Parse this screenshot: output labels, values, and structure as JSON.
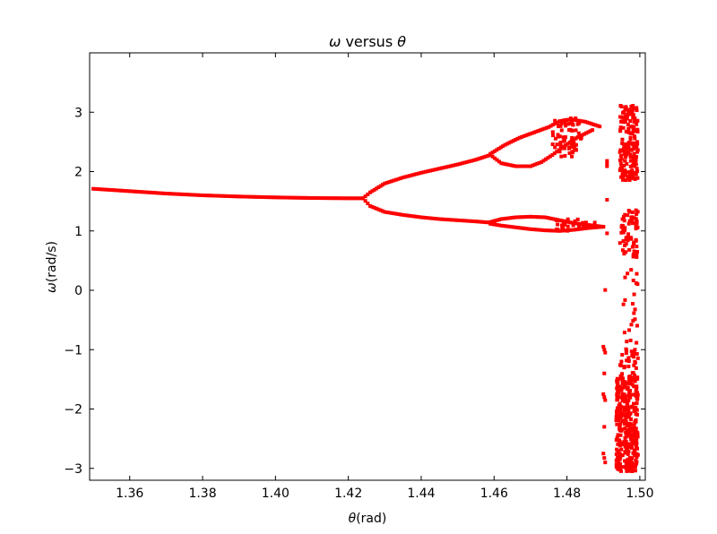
{
  "chart_data": {
    "type": "scatter",
    "title": {
      "sym1": "ω",
      "text": " versus ",
      "sym2": "θ"
    },
    "xlabel": {
      "sym": "θ",
      "unit": "(rad)"
    },
    "ylabel": {
      "sym": "ω",
      "unit": "(rad/s)"
    },
    "xlim": [
      1.349,
      1.5015
    ],
    "ylim": [
      -3.2,
      4.0
    ],
    "xticks": [
      1.36,
      1.38,
      1.4,
      1.42,
      1.44,
      1.46,
      1.48,
      1.5
    ],
    "xtick_labels": [
      "1.36",
      "1.38",
      "1.40",
      "1.42",
      "1.44",
      "1.46",
      "1.48",
      "1.50"
    ],
    "yticks": [
      -3,
      -2,
      -1,
      0,
      1,
      2,
      3
    ],
    "ytick_labels": [
      "−3",
      "−2",
      "−1",
      "0",
      "1",
      "2",
      "3"
    ],
    "grid": false,
    "marker_color": "#ff0000",
    "series": [
      {
        "regions": [
          {
            "desc": "single-branch",
            "points": [
              [
                1.35,
                1.71
              ],
              [
                1.36,
                1.67
              ],
              [
                1.37,
                1.63
              ],
              [
                1.38,
                1.6
              ],
              [
                1.39,
                1.58
              ],
              [
                1.4,
                1.565
              ],
              [
                1.41,
                1.555
              ],
              [
                1.42,
                1.55
              ],
              [
                1.424,
                1.55
              ]
            ]
          },
          {
            "desc": "upper-branch-period2",
            "points": [
              [
                1.424,
                1.55
              ],
              [
                1.426,
                1.65
              ],
              [
                1.43,
                1.8
              ],
              [
                1.435,
                1.9
              ],
              [
                1.44,
                1.98
              ],
              [
                1.445,
                2.05
              ],
              [
                1.45,
                2.12
              ],
              [
                1.455,
                2.2
              ],
              [
                1.459,
                2.28
              ]
            ]
          },
          {
            "desc": "lower-branch-period2",
            "points": [
              [
                1.424,
                1.55
              ],
              [
                1.426,
                1.42
              ],
              [
                1.43,
                1.32
              ],
              [
                1.435,
                1.27
              ],
              [
                1.44,
                1.23
              ],
              [
                1.445,
                1.2
              ],
              [
                1.45,
                1.18
              ],
              [
                1.455,
                1.16
              ],
              [
                1.459,
                1.14
              ]
            ]
          },
          {
            "desc": "upper-loop-top",
            "points": [
              [
                1.459,
                2.3
              ],
              [
                1.463,
                2.45
              ],
              [
                1.467,
                2.57
              ],
              [
                1.471,
                2.66
              ],
              [
                1.475,
                2.75
              ],
              [
                1.478,
                2.85
              ],
              [
                1.481,
                2.88
              ],
              [
                1.485,
                2.84
              ],
              [
                1.489,
                2.76
              ]
            ]
          },
          {
            "desc": "upper-loop-bottom",
            "points": [
              [
                1.459,
                2.28
              ],
              [
                1.462,
                2.14
              ],
              [
                1.466,
                2.09
              ],
              [
                1.47,
                2.09
              ],
              [
                1.473,
                2.16
              ],
              [
                1.476,
                2.28
              ],
              [
                1.479,
                2.42
              ],
              [
                1.483,
                2.58
              ],
              [
                1.487,
                2.7
              ]
            ]
          },
          {
            "desc": "lower-loop-top",
            "points": [
              [
                1.459,
                1.15
              ],
              [
                1.462,
                1.2
              ],
              [
                1.466,
                1.23
              ],
              [
                1.47,
                1.24
              ],
              [
                1.474,
                1.23
              ],
              [
                1.478,
                1.18
              ],
              [
                1.482,
                1.13
              ],
              [
                1.486,
                1.1
              ],
              [
                1.49,
                1.07
              ]
            ]
          },
          {
            "desc": "lower-loop-bottom",
            "points": [
              [
                1.459,
                1.12
              ],
              [
                1.462,
                1.09
              ],
              [
                1.466,
                1.06
              ],
              [
                1.47,
                1.03
              ],
              [
                1.474,
                1.01
              ],
              [
                1.478,
                1.0
              ],
              [
                1.482,
                1.02
              ],
              [
                1.486,
                1.05
              ],
              [
                1.49,
                1.07
              ]
            ]
          },
          {
            "desc": "chaotic-cluster-1.48",
            "x_range": [
              1.476,
              1.484
            ],
            "y_range": [
              2.25,
              2.9
            ],
            "count": 70
          },
          {
            "desc": "chaotic-cluster-1.48-low",
            "x_range": [
              1.476,
              1.488
            ],
            "y_range": [
              1.0,
              1.2
            ],
            "count": 25
          },
          {
            "desc": "isolated-1.491",
            "points": [
              [
                1.491,
                2.18
              ],
              [
                1.491,
                2.09
              ],
              [
                1.491,
                0.96
              ],
              [
                1.49,
                -0.95
              ],
              [
                1.4905,
                -1.05
              ],
              [
                1.49,
                -1.75
              ],
              [
                1.4905,
                -1.85
              ],
              [
                1.49,
                -2.75
              ],
              [
                1.4905,
                -2.9
              ]
            ]
          },
          {
            "desc": "chaotic-column-upper",
            "x_range": [
              1.4945,
              1.4995
            ],
            "y_range": [
              1.85,
              3.12
            ],
            "count": 170
          },
          {
            "desc": "chaotic-column-mid",
            "x_range": [
              1.4945,
              1.4995
            ],
            "y_range": [
              0.55,
              1.35
            ],
            "count": 70
          },
          {
            "desc": "chaotic-column-sparse",
            "x_range": [
              1.4955,
              1.4995
            ],
            "y_range": [
              -0.9,
              0.5
            ],
            "count": 22
          },
          {
            "desc": "chaotic-column-lower",
            "x_range": [
              1.4935,
              1.4995
            ],
            "y_range": [
              -3.05,
              -1.4
            ],
            "count": 330
          },
          {
            "desc": "chaotic-column-lower-mid",
            "x_range": [
              1.4945,
              1.4995
            ],
            "y_range": [
              -1.4,
              -0.95
            ],
            "count": 30
          }
        ]
      }
    ]
  }
}
